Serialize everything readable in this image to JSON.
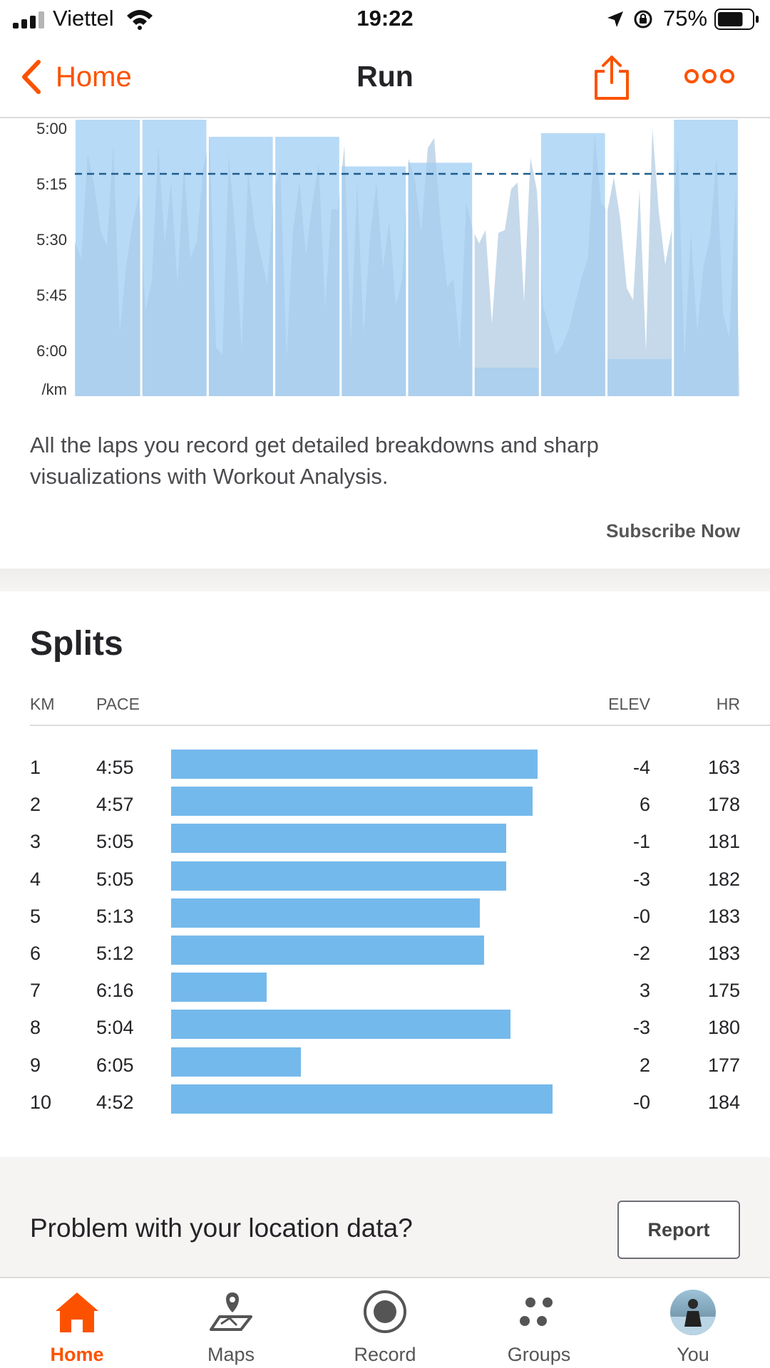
{
  "status_bar": {
    "carrier": "Viettel",
    "time": "19:22",
    "battery": "75%",
    "battery_level": 0.75
  },
  "nav": {
    "back_label": "Home",
    "title": "Run",
    "icons": [
      "chevron-left-icon",
      "share-icon",
      "more-icon"
    ]
  },
  "chart_data": {
    "type": "bar",
    "ylabels": [
      "5:00",
      "5:15",
      "5:30",
      "5:45",
      "6:00",
      "/km"
    ],
    "ylim_sec": [
      300,
      375
    ],
    "reference_line_sec": 315,
    "laps_sec": [
      295,
      297,
      305,
      305,
      313,
      312,
      376,
      304,
      365,
      292
    ],
    "grid": false
  },
  "promo": {
    "text": "All the laps you record get detailed breakdowns and sharp visualizations with Workout Analysis.",
    "subscribe_label": "Subscribe Now"
  },
  "splits": {
    "title": "Splits",
    "headers": {
      "km": "KM",
      "pace": "PACE",
      "elev": "ELEV",
      "hr": "HR"
    },
    "bar_color": "#74b9ec",
    "rows": [
      {
        "km": "1",
        "pace": "4:55",
        "pace_fraction": 0.917,
        "elev": "-4",
        "hr": "163"
      },
      {
        "km": "2",
        "pace": "4:57",
        "pace_fraction": 0.906,
        "elev": "6",
        "hr": "178"
      },
      {
        "km": "3",
        "pace": "5:05",
        "pace_fraction": 0.84,
        "elev": "-1",
        "hr": "181"
      },
      {
        "km": "4",
        "pace": "5:05",
        "pace_fraction": 0.84,
        "elev": "-3",
        "hr": "182"
      },
      {
        "km": "5",
        "pace": "5:13",
        "pace_fraction": 0.773,
        "elev": "-0",
        "hr": "183"
      },
      {
        "km": "6",
        "pace": "5:12",
        "pace_fraction": 0.784,
        "elev": "-2",
        "hr": "183"
      },
      {
        "km": "7",
        "pace": "6:16",
        "pace_fraction": 0.24,
        "elev": "3",
        "hr": "175"
      },
      {
        "km": "8",
        "pace": "5:04",
        "pace_fraction": 0.85,
        "elev": "-3",
        "hr": "180"
      },
      {
        "km": "9",
        "pace": "6:05",
        "pace_fraction": 0.325,
        "elev": "2",
        "hr": "177"
      },
      {
        "km": "10",
        "pace": "4:52",
        "pace_fraction": 0.955,
        "elev": "-0",
        "hr": "184"
      }
    ]
  },
  "location": {
    "question": "Problem with your location data?",
    "report_label": "Report"
  },
  "tabs": [
    {
      "label": "Home",
      "icon": "home-icon",
      "active": true
    },
    {
      "label": "Maps",
      "icon": "map-pin-icon",
      "active": false
    },
    {
      "label": "Record",
      "icon": "record-icon",
      "active": false
    },
    {
      "label": "Groups",
      "icon": "groups-icon",
      "active": false
    },
    {
      "label": "You",
      "icon": "avatar",
      "active": false
    }
  ],
  "colors": {
    "accent": "#fc5200",
    "lap_bar": "#aad4f5",
    "pace_fill": "#a5cbe9",
    "reference_line": "#1f5d8c"
  }
}
